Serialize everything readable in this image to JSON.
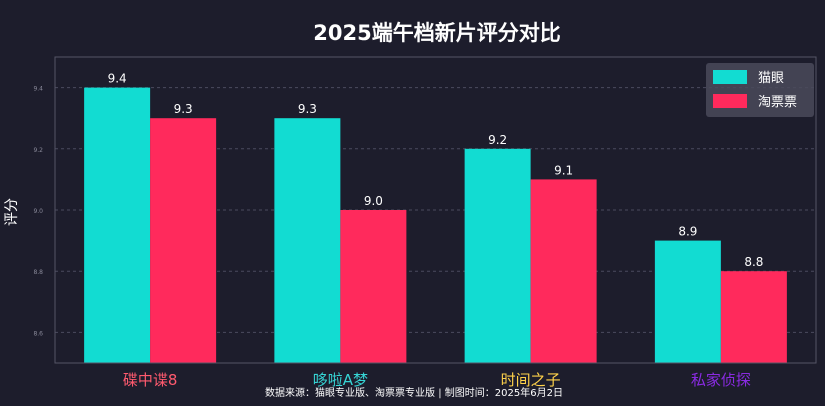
{
  "chart_data": {
    "type": "bar",
    "title": "2025端午档新片评分对比",
    "xlabel": "",
    "ylabel": "评分",
    "ylim": [
      8.5,
      9.5
    ],
    "yticks": [
      "8.6",
      "8.8",
      "9.0",
      "9.2",
      "9.4",
      "9.6"
    ],
    "grid": true,
    "legend_position": "top-right",
    "categories": [
      "碟中谍8",
      "哆啦A梦",
      "时间之子",
      "私家侦探"
    ],
    "category_colors": [
      "#ff5a6e",
      "#36d4d4",
      "#ffd24a",
      "#8a2be2"
    ],
    "series": [
      {
        "name": "猫眼",
        "color": "#12dcd2",
        "values": [
          9.4,
          9.3,
          9.2,
          8.9
        ]
      },
      {
        "name": "淘票票",
        "color": "#ff2a5c",
        "values": [
          9.3,
          9.0,
          9.1,
          8.8
        ]
      }
    ],
    "value_labels": [
      [
        "9.4",
        "9.3",
        "9.2",
        "8.9"
      ],
      [
        "9.3",
        "9.0",
        "9.1",
        "8.8"
      ]
    ],
    "footnote": "数据来源：猫眼专业版、淘票票专业版 | 制图时间：2025年6月2日"
  }
}
